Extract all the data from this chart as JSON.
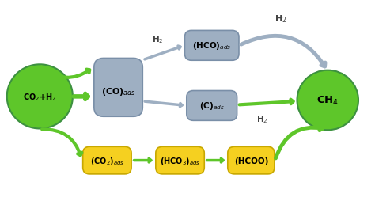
{
  "bg_color": "#ffffff",
  "green_color": "#5ec62a",
  "green_dark": "#3d9140",
  "gray_box_color": "#9eafc2",
  "gray_box_edge": "#7a8fa8",
  "yellow_box_color": "#f5d020",
  "yellow_box_edge": "#c8a800",
  "arrow_green": "#5ec62a",
  "arrow_gray": "#9eafc2",
  "text_color": "#1a1a1a",
  "co2h2_text": "CO$_2$+H$_2$",
  "ch4_text": "CH$_4$",
  "co_ads_text": "(CO)$_{ads}$",
  "hco_ads_text": "(HCO)$_{ads}$",
  "c_ads_text": "(C)$_{ads}$",
  "co2_ads_text": "(CO$_2$)$_{ads}$",
  "hco3_ads_text": "(HCO$_3$)$_{ads}$",
  "hcoo_text": "(HCOO)",
  "h2_label": "H$_2$",
  "figsize": [
    4.74,
    2.55
  ],
  "dpi": 100
}
